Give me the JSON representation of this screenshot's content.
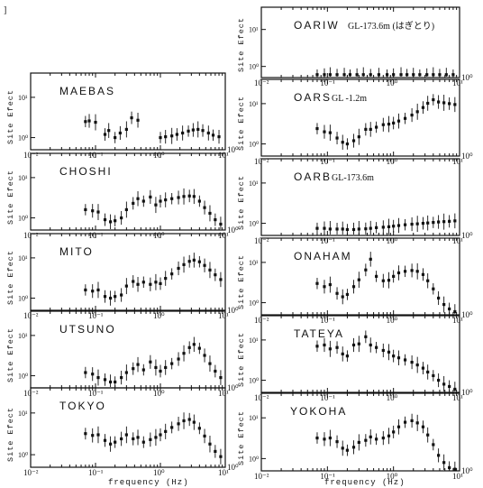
{
  "figure": {
    "corner_mark": "]",
    "y_axis_label": "Site Efect",
    "x_axis_label": "frequency (Hz)"
  },
  "chart_data": [
    {
      "type": "scatter",
      "station": "MAEBAS",
      "note": "",
      "xscale": "log",
      "yscale": "log",
      "xlim": [
        0.01,
        10
      ],
      "ylim": [
        0.5,
        40
      ],
      "x": [
        0.07,
        0.08,
        0.1,
        0.14,
        0.16,
        0.2,
        0.24,
        0.3,
        0.36,
        0.45,
        1.0,
        1.2,
        1.5,
        1.8,
        2.2,
        2.7,
        3.2,
        3.8,
        4.5,
        5.5,
        6.5,
        8.0
      ],
      "y": [
        2.5,
        2.6,
        2.4,
        1.2,
        1.5,
        1.0,
        1.3,
        1.6,
        3.1,
        2.7,
        1.0,
        1.05,
        1.1,
        1.2,
        1.3,
        1.45,
        1.55,
        1.6,
        1.5,
        1.3,
        1.15,
        1.05
      ]
    },
    {
      "type": "scatter",
      "station": "OARIW",
      "note": "GL-173.6m (はぎとり)",
      "xscale": "log",
      "yscale": "log",
      "xlim": [
        0.01,
        10
      ],
      "ylim": [
        0.5,
        40
      ],
      "x": [
        0.07,
        0.09,
        0.11,
        0.14,
        0.18,
        0.22,
        0.28,
        0.35,
        0.45,
        0.6,
        0.8,
        1.0,
        1.3,
        1.6,
        2.0,
        2.5,
        3.2,
        4.0,
        5.0,
        6.3,
        8.0
      ],
      "y": [
        0.6,
        0.6,
        0.6,
        0.6,
        0.6,
        0.6,
        0.6,
        0.6,
        0.6,
        0.6,
        0.6,
        0.6,
        0.6,
        0.6,
        0.6,
        0.6,
        0.6,
        0.6,
        0.6,
        0.6,
        0.6
      ]
    },
    {
      "type": "scatter",
      "station": "CHOSHI",
      "note": "",
      "xscale": "log",
      "yscale": "log",
      "xlim": [
        0.01,
        10
      ],
      "ylim": [
        0.5,
        40
      ],
      "x": [
        0.07,
        0.09,
        0.11,
        0.14,
        0.17,
        0.2,
        0.25,
        0.3,
        0.38,
        0.45,
        0.55,
        0.7,
        0.85,
        1.0,
        1.2,
        1.5,
        1.9,
        2.3,
        2.8,
        3.3,
        4.0,
        4.8,
        5.8,
        7.0,
        8.5
      ],
      "y": [
        1.6,
        1.5,
        1.4,
        0.9,
        0.8,
        0.85,
        1.0,
        1.6,
        2.3,
        3.0,
        2.6,
        3.3,
        2.1,
        2.6,
        2.8,
        3.0,
        3.2,
        3.4,
        3.5,
        3.4,
        2.6,
        1.8,
        1.3,
        0.9,
        0.7
      ]
    },
    {
      "type": "scatter",
      "station": "OARS",
      "note": "GL -1.2m",
      "xscale": "log",
      "yscale": "log",
      "xlim": [
        0.01,
        10
      ],
      "ylim": [
        0.5,
        40
      ],
      "x": [
        0.07,
        0.09,
        0.11,
        0.14,
        0.17,
        0.2,
        0.25,
        0.3,
        0.38,
        0.45,
        0.55,
        0.7,
        0.85,
        1.0,
        1.2,
        1.5,
        1.9,
        2.3,
        2.8,
        3.3,
        4.0,
        4.8,
        5.8,
        7.0,
        8.5
      ],
      "y": [
        2.4,
        2.0,
        1.9,
        1.4,
        1.1,
        1.0,
        1.2,
        1.5,
        2.3,
        2.3,
        2.6,
        3.0,
        3.1,
        3.3,
        3.7,
        4.3,
        5.2,
        6.3,
        8.0,
        10.2,
        12.5,
        11.0,
        10.5,
        10.0,
        9.5
      ]
    },
    {
      "type": "scatter",
      "station": "MITO",
      "note": "",
      "xscale": "log",
      "yscale": "log",
      "xlim": [
        0.01,
        10
      ],
      "ylim": [
        0.5,
        40
      ],
      "x": [
        0.07,
        0.09,
        0.11,
        0.14,
        0.17,
        0.2,
        0.25,
        0.3,
        0.38,
        0.45,
        0.55,
        0.7,
        0.85,
        1.0,
        1.2,
        1.5,
        1.9,
        2.3,
        2.8,
        3.3,
        4.0,
        4.8,
        5.8,
        7.0,
        8.5
      ],
      "y": [
        1.6,
        1.5,
        1.6,
        1.1,
        1.0,
        1.1,
        1.2,
        2.0,
        2.6,
        2.2,
        2.5,
        2.2,
        2.5,
        2.3,
        3.1,
        4.0,
        5.5,
        6.8,
        8.2,
        8.8,
        8.0,
        6.5,
        5.0,
        3.8,
        2.9
      ]
    },
    {
      "type": "scatter",
      "station": "OARB",
      "note": "GL-173.6m",
      "xscale": "log",
      "yscale": "log",
      "xlim": [
        0.01,
        10
      ],
      "ylim": [
        0.5,
        40
      ],
      "x": [
        0.07,
        0.09,
        0.11,
        0.14,
        0.17,
        0.2,
        0.25,
        0.3,
        0.38,
        0.45,
        0.55,
        0.7,
        0.85,
        1.0,
        1.2,
        1.5,
        1.9,
        2.3,
        2.8,
        3.3,
        4.0,
        4.8,
        5.8,
        7.0,
        8.5
      ],
      "y": [
        0.75,
        0.75,
        0.72,
        0.72,
        0.72,
        0.7,
        0.7,
        0.72,
        0.73,
        0.75,
        0.78,
        0.8,
        0.82,
        0.85,
        0.88,
        0.92,
        0.95,
        0.97,
        1.0,
        1.02,
        1.05,
        1.08,
        1.1,
        1.12,
        1.15
      ]
    },
    {
      "type": "scatter",
      "station": "UTSUNO",
      "note": "",
      "xscale": "log",
      "yscale": "log",
      "xlim": [
        0.01,
        10
      ],
      "ylim": [
        0.5,
        40
      ],
      "x": [
        0.07,
        0.09,
        0.11,
        0.14,
        0.17,
        0.2,
        0.25,
        0.3,
        0.38,
        0.45,
        0.55,
        0.7,
        0.85,
        1.0,
        1.2,
        1.5,
        1.9,
        2.3,
        2.8,
        3.3,
        4.0,
        4.8,
        5.8,
        7.0,
        8.5
      ],
      "y": [
        1.2,
        1.1,
        0.9,
        0.8,
        0.7,
        0.7,
        0.9,
        1.2,
        1.5,
        1.9,
        1.4,
        2.2,
        1.6,
        1.3,
        1.6,
        2.0,
        2.6,
        3.6,
        5.0,
        6.0,
        4.8,
        3.2,
        2.0,
        1.3,
        0.9
      ]
    },
    {
      "type": "scatter",
      "station": "ONAHAM",
      "note": "",
      "xscale": "log",
      "yscale": "log",
      "xlim": [
        0.01,
        10
      ],
      "ylim": [
        0.5,
        40
      ],
      "x": [
        0.07,
        0.09,
        0.11,
        0.14,
        0.17,
        0.2,
        0.25,
        0.3,
        0.38,
        0.45,
        0.55,
        0.7,
        0.85,
        1.0,
        1.2,
        1.5,
        1.9,
        2.3,
        2.8,
        3.3,
        4.0,
        4.8,
        5.8,
        7.0,
        8.5
      ],
      "y": [
        3.0,
        2.5,
        2.8,
        1.7,
        1.4,
        1.6,
        2.5,
        3.7,
        6.5,
        12.0,
        4.5,
        3.5,
        3.6,
        4.5,
        5.5,
        6.0,
        6.3,
        6.0,
        5.0,
        3.5,
        2.2,
        1.3,
        0.9,
        0.7,
        0.6
      ]
    },
    {
      "type": "scatter",
      "station": "TOKYO",
      "note": "",
      "xscale": "log",
      "yscale": "log",
      "xlim": [
        0.01,
        10
      ],
      "ylim": [
        0.5,
        40
      ],
      "x": [
        0.07,
        0.09,
        0.11,
        0.14,
        0.17,
        0.2,
        0.25,
        0.3,
        0.38,
        0.45,
        0.55,
        0.7,
        0.85,
        1.0,
        1.2,
        1.5,
        1.9,
        2.3,
        2.8,
        3.3,
        4.0,
        4.8,
        5.8,
        7.0,
        8.5
      ],
      "y": [
        3.2,
        2.9,
        3.0,
        2.2,
        1.8,
        2.0,
        2.4,
        3.0,
        2.4,
        2.6,
        2.0,
        2.3,
        2.6,
        3.0,
        3.6,
        4.5,
        5.5,
        6.5,
        7.0,
        6.0,
        4.3,
        2.8,
        1.8,
        1.2,
        0.9
      ]
    },
    {
      "type": "scatter",
      "station": "TATEYA",
      "note": "",
      "xscale": "log",
      "yscale": "log",
      "xlim": [
        0.01,
        10
      ],
      "ylim": [
        0.5,
        40
      ],
      "x": [
        0.07,
        0.09,
        0.11,
        0.14,
        0.17,
        0.2,
        0.25,
        0.3,
        0.38,
        0.45,
        0.55,
        0.7,
        0.85,
        1.0,
        1.2,
        1.5,
        1.9,
        2.3,
        2.8,
        3.3,
        4.0,
        4.8,
        5.8,
        7.0,
        8.5
      ],
      "y": [
        7.0,
        7.5,
        6.0,
        6.5,
        4.5,
        4.0,
        7.5,
        8.0,
        12.0,
        7.5,
        6.5,
        5.5,
        5.0,
        4.0,
        3.6,
        3.2,
        2.8,
        2.4,
        2.0,
        1.6,
        1.3,
        1.0,
        0.8,
        0.7,
        0.6
      ]
    },
    {
      "type": "scatter",
      "station": "YOKOHA",
      "note": "",
      "xscale": "log",
      "yscale": "log",
      "xlim": [
        0.01,
        10
      ],
      "ylim": [
        0.5,
        40
      ],
      "x": [
        0.07,
        0.09,
        0.11,
        0.14,
        0.17,
        0.2,
        0.25,
        0.3,
        0.38,
        0.45,
        0.55,
        0.7,
        0.85,
        1.0,
        1.2,
        1.5,
        1.9,
        2.3,
        2.8,
        3.3,
        4.0,
        4.8,
        5.8,
        7.0,
        8.5
      ],
      "y": [
        3.2,
        3.0,
        3.2,
        2.6,
        1.8,
        1.6,
        1.9,
        2.5,
        2.8,
        3.4,
        3.0,
        3.2,
        3.6,
        4.5,
        6.0,
        7.8,
        8.5,
        7.5,
        6.0,
        3.8,
        2.2,
        1.2,
        0.8,
        0.6,
        0.55
      ]
    }
  ],
  "x_tick_labels": [
    "10⁻²",
    "10⁻¹",
    "10⁰",
    "10¹"
  ],
  "x_tick_label_right": "10⁰",
  "y_tick_labels": [
    "10⁰",
    "10¹"
  ]
}
